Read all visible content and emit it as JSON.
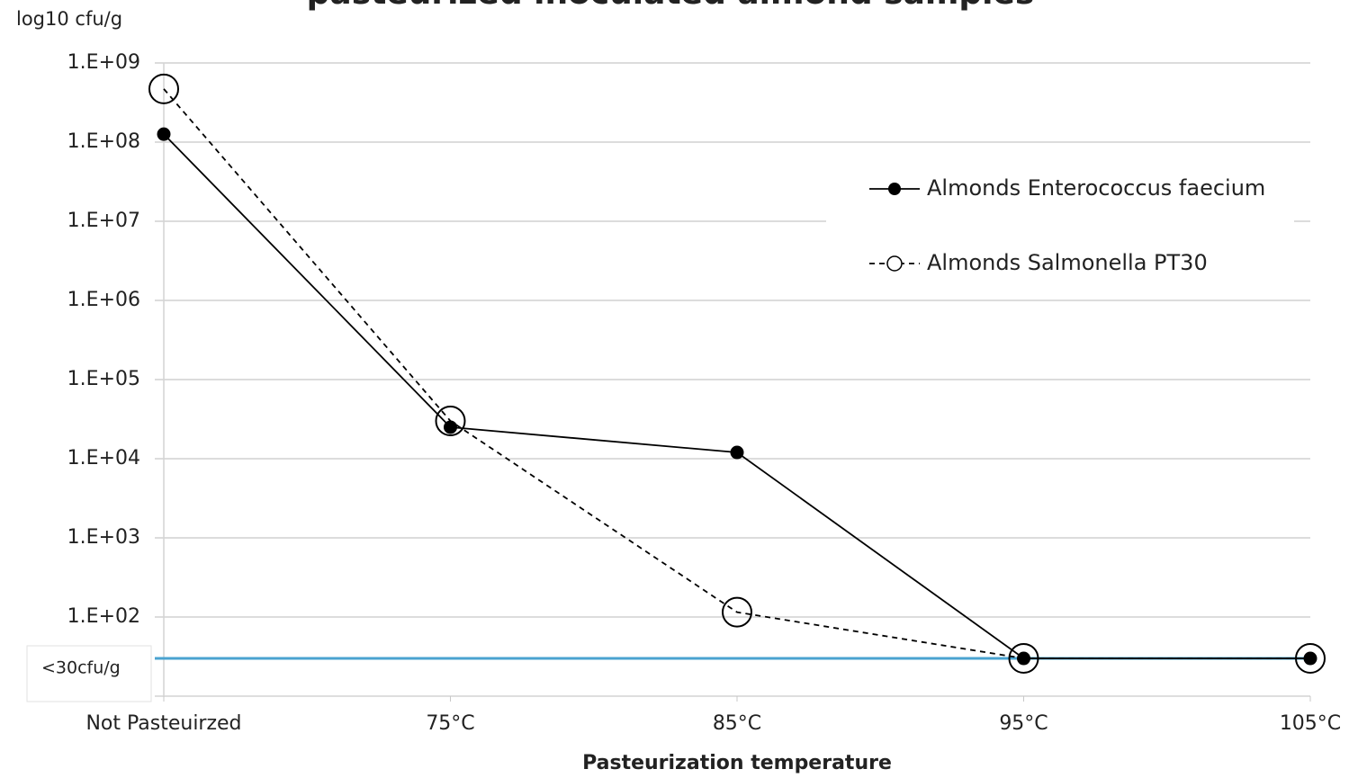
{
  "chart_data": {
    "type": "line",
    "title": "pasteurized inoculated almond samples",
    "y_label": "log10 cfu/g",
    "x_label": "Pasteurization temperature",
    "categories": [
      "Not Pasteuirzed",
      "75°C",
      "85°C",
      "95°C",
      "105°C"
    ],
    "series": [
      {
        "name": "Almonds Enterococcus faecium",
        "color": "#000000",
        "line_style": "solid",
        "marker": "filled",
        "values": [
          126000000,
          25000,
          12000,
          30,
          30
        ]
      },
      {
        "name": "Almonds Salmonella PT30",
        "color": "#000000",
        "line_style": "dashed",
        "marker": "open",
        "values": [
          470000000,
          30000,
          115,
          30,
          30
        ]
      }
    ],
    "y_scale": "log",
    "ylim": [
      10,
      1000000000
    ],
    "yticks": [
      {
        "value": 100,
        "label": "1.E+02"
      },
      {
        "value": 1000,
        "label": "1.E+03"
      },
      {
        "value": 10000,
        "label": "1.E+04"
      },
      {
        "value": 100000,
        "label": "1.E+05"
      },
      {
        "value": 1000000,
        "label": "1.E+06"
      },
      {
        "value": 10000000,
        "label": "1.E+07"
      },
      {
        "value": 100000000,
        "label": "1.E+08"
      },
      {
        "value": 1000000000,
        "label": "1.E+09"
      }
    ],
    "grid": true,
    "legend": "upper-right",
    "threshold": {
      "value": 30,
      "label": "<30cfu/g",
      "color": "#4aa3d0"
    }
  }
}
